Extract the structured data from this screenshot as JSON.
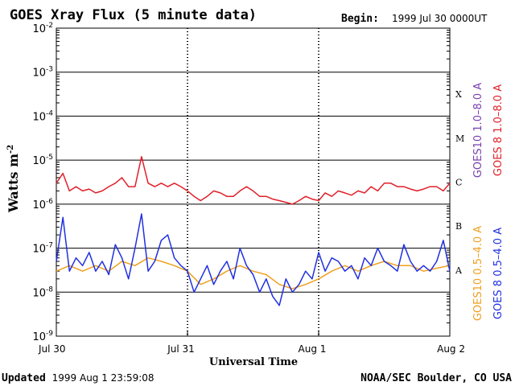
{
  "header": {
    "title": "GOES Xray Flux (5 minute data)",
    "begin_label": "Begin:",
    "begin_value": "1999 Jul 30 0000UT"
  },
  "footer": {
    "updated_label": "Updated",
    "updated_value": "1999 Aug  1 23:59:08",
    "credit": "NOAA/SEC Boulder, CO USA"
  },
  "chart_data": {
    "type": "line",
    "title": "GOES Xray Flux (5 minute data)",
    "xlabel": "Universal Time",
    "ylabel": "Watts m",
    "ylabel_sup": "-2",
    "y_scale": "log",
    "ylim": [
      1e-09,
      0.01
    ],
    "xlim": [
      "1999-07-30",
      "1999-08-02"
    ],
    "x_ticks": [
      "Jul 30",
      "Jul 31",
      "Aug 1",
      "Aug 2"
    ],
    "y_ticks": [
      {
        "base": "10",
        "exp": "-2",
        "value": 0.01
      },
      {
        "base": "10",
        "exp": "-3",
        "value": 0.001
      },
      {
        "base": "10",
        "exp": "-4",
        "value": 0.0001
      },
      {
        "base": "10",
        "exp": "-5",
        "value": 1e-05
      },
      {
        "base": "10",
        "exp": "-6",
        "value": 1e-06
      },
      {
        "base": "10",
        "exp": "-7",
        "value": 1e-07
      },
      {
        "base": "10",
        "exp": "-8",
        "value": 1e-08
      },
      {
        "base": "10",
        "exp": "-9",
        "value": 1e-09
      }
    ],
    "flare_classes": [
      {
        "label": "X",
        "value": 0.000316
      },
      {
        "label": "M",
        "value": 3.16e-05
      },
      {
        "label": "C",
        "value": 3.16e-06
      },
      {
        "label": "B",
        "value": 3.16e-07
      },
      {
        "label": "A",
        "value": 3.16e-08
      }
    ],
    "grid": "horizontal lines at each decade",
    "legend_placement": "right, vertical",
    "legend": [
      {
        "name": "GOES10 1.0–8.0 A",
        "color": "#7a3fb0"
      },
      {
        "name": "GOES 8 1.0–8.0 A",
        "color": "#e0202a"
      },
      {
        "name": "GOES10 0.5–4.0 A",
        "color": "#f0a020"
      },
      {
        "name": "GOES 8 0.5–4.0 A",
        "color": "#2030e0"
      }
    ],
    "series": [
      {
        "name": "GOES 8 1.0–8.0 A",
        "color": "#e0202a",
        "x_days": [
          0,
          0.05,
          0.1,
          0.15,
          0.2,
          0.25,
          0.3,
          0.35,
          0.4,
          0.45,
          0.5,
          0.55,
          0.6,
          0.65,
          0.7,
          0.75,
          0.8,
          0.85,
          0.9,
          0.95,
          1.0,
          1.05,
          1.1,
          1.15,
          1.2,
          1.25,
          1.3,
          1.35,
          1.4,
          1.45,
          1.5,
          1.55,
          1.6,
          1.65,
          1.7,
          1.75,
          1.8,
          1.85,
          1.9,
          1.95,
          2.0,
          2.05,
          2.1,
          2.15,
          2.2,
          2.25,
          2.3,
          2.35,
          2.4,
          2.45,
          2.5,
          2.55,
          2.6,
          2.65,
          2.7,
          2.75,
          2.8,
          2.85,
          2.9,
          2.95,
          3.0
        ],
        "values": [
          3e-06,
          5e-06,
          2e-06,
          2.5e-06,
          2e-06,
          2.2e-06,
          1.8e-06,
          2e-06,
          2.5e-06,
          3e-06,
          4e-06,
          2.5e-06,
          2.5e-06,
          1.2e-05,
          3e-06,
          2.5e-06,
          3e-06,
          2.5e-06,
          3e-06,
          2.5e-06,
          2e-06,
          1.5e-06,
          1.2e-06,
          1.5e-06,
          2e-06,
          1.8e-06,
          1.5e-06,
          1.5e-06,
          2e-06,
          2.5e-06,
          2e-06,
          1.5e-06,
          1.5e-06,
          1.3e-06,
          1.2e-06,
          1.1e-06,
          1e-06,
          1.2e-06,
          1.5e-06,
          1.3e-06,
          1.2e-06,
          1.8e-06,
          1.5e-06,
          2e-06,
          1.8e-06,
          1.6e-06,
          2e-06,
          1.8e-06,
          2.5e-06,
          2e-06,
          3e-06,
          3e-06,
          2.5e-06,
          2.5e-06,
          2.2e-06,
          2e-06,
          2.2e-06,
          2.5e-06,
          2.5e-06,
          2e-06,
          3e-06
        ]
      },
      {
        "name": "GOES10 0.5–4.0 A",
        "color": "#f0a020",
        "x_days": [
          0,
          0.1,
          0.2,
          0.3,
          0.4,
          0.5,
          0.6,
          0.7,
          0.8,
          0.9,
          1.0,
          1.1,
          1.2,
          1.3,
          1.4,
          1.5,
          1.6,
          1.7,
          1.8,
          1.9,
          2.0,
          2.1,
          2.2,
          2.3,
          2.4,
          2.5,
          2.6,
          2.7,
          2.8,
          2.9,
          3.0
        ],
        "values": [
          3e-08,
          4e-08,
          3e-08,
          4e-08,
          3e-08,
          5e-08,
          4e-08,
          6e-08,
          5e-08,
          4e-08,
          3e-08,
          1.5e-08,
          2e-08,
          3e-08,
          4e-08,
          3e-08,
          2.5e-08,
          1.5e-08,
          1.2e-08,
          1.5e-08,
          2e-08,
          3e-08,
          4e-08,
          3e-08,
          4e-08,
          5e-08,
          4e-08,
          4e-08,
          3e-08,
          3.5e-08,
          4e-08
        ]
      },
      {
        "name": "GOES 8 0.5–4.0 A",
        "color": "#2030e0",
        "x_days": [
          0,
          0.05,
          0.1,
          0.15,
          0.2,
          0.25,
          0.3,
          0.35,
          0.4,
          0.45,
          0.5,
          0.55,
          0.6,
          0.65,
          0.7,
          0.75,
          0.8,
          0.85,
          0.9,
          0.95,
          1.0,
          1.05,
          1.1,
          1.15,
          1.2,
          1.25,
          1.3,
          1.35,
          1.4,
          1.45,
          1.5,
          1.55,
          1.6,
          1.65,
          1.7,
          1.75,
          1.8,
          1.85,
          1.9,
          1.95,
          2.0,
          2.05,
          2.1,
          2.15,
          2.2,
          2.25,
          2.3,
          2.35,
          2.4,
          2.45,
          2.5,
          2.55,
          2.6,
          2.65,
          2.7,
          2.75,
          2.8,
          2.85,
          2.9,
          2.95,
          3.0
        ],
        "values": [
          5e-08,
          5e-07,
          3e-08,
          6e-08,
          4e-08,
          8e-08,
          3e-08,
          5e-08,
          2.5e-08,
          1.2e-07,
          6e-08,
          2e-08,
          1e-07,
          6e-07,
          3e-08,
          5e-08,
          1.5e-07,
          2e-07,
          6e-08,
          4e-08,
          3e-08,
          1e-08,
          2e-08,
          4e-08,
          1.5e-08,
          3e-08,
          5e-08,
          2e-08,
          1e-07,
          4e-08,
          2.5e-08,
          1e-08,
          2e-08,
          8e-09,
          5e-09,
          2e-08,
          1e-08,
          1.5e-08,
          3e-08,
          2e-08,
          8e-08,
          3e-08,
          6e-08,
          5e-08,
          3e-08,
          4e-08,
          2e-08,
          6e-08,
          4e-08,
          1e-07,
          5e-08,
          4e-08,
          3e-08,
          1.2e-07,
          5e-08,
          3e-08,
          4e-08,
          3e-08,
          5e-08,
          1.5e-07,
          3e-08
        ]
      }
    ]
  }
}
